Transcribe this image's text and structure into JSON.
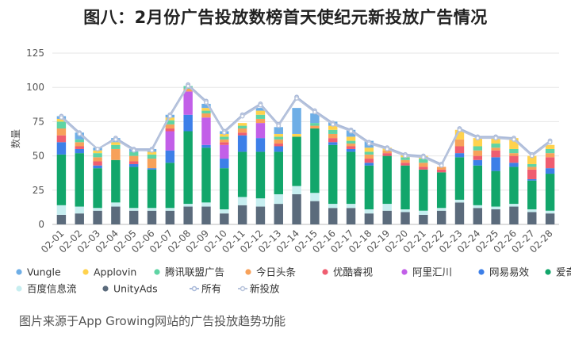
{
  "title": "图八：2月份广告投放数榜首天使纪元新投放广告情况",
  "caption": "图片来源于App Growing网站的广告投放趋势功能",
  "chart_data": {
    "type": "bar",
    "stacked": true,
    "categories": [
      "02-01",
      "02-02",
      "02-03",
      "02-04",
      "02-05",
      "02-06",
      "02-07",
      "02-08",
      "02-09",
      "02-10",
      "02-11",
      "02-12",
      "02-13",
      "02-14",
      "02-15",
      "02-16",
      "02-17",
      "02-18",
      "02-19",
      "02-20",
      "02-21",
      "02-22",
      "02-23",
      "02-24",
      "02-25",
      "02-26",
      "02-27",
      "02-28"
    ],
    "ylabel": "数量",
    "ylim": [
      0,
      125
    ],
    "yticks": [
      0,
      25,
      50,
      75,
      100,
      125
    ],
    "grid": true,
    "legend_position": "bottom",
    "series": [
      {
        "name": "UnityAds",
        "color": "#5b6b7c",
        "values": [
          7,
          8,
          10,
          13,
          10,
          10,
          10,
          13,
          13,
          8,
          14,
          13,
          15,
          22,
          17,
          12,
          12,
          8,
          10,
          9,
          7,
          10,
          16,
          12,
          11,
          13,
          9,
          8
        ]
      },
      {
        "name": "百度信息流",
        "color": "#c7eef0",
        "values": [
          7,
          5,
          2,
          3,
          2,
          2,
          2,
          2,
          3,
          3,
          6,
          6,
          7,
          6,
          6,
          3,
          3,
          3,
          5,
          2,
          3,
          2,
          2,
          2,
          2,
          2,
          2,
          2
        ]
      },
      {
        "name": "爱奇艺",
        "color": "#12a66b",
        "values": [
          37,
          39,
          29,
          31,
          30,
          28,
          33,
          53,
          40,
          30,
          33,
          34,
          31,
          36,
          47,
          43,
          38,
          32,
          35,
          32,
          30,
          26,
          31,
          29,
          26,
          27,
          21,
          27
        ]
      },
      {
        "name": "网易易效",
        "color": "#3d7fe8",
        "values": [
          9,
          3,
          2,
          0,
          2,
          1,
          9,
          12,
          2,
          7,
          12,
          10,
          4,
          0,
          0,
          2,
          2,
          2,
          0,
          0,
          0,
          0,
          3,
          4,
          10,
          3,
          1,
          4
        ]
      },
      {
        "name": "阿里汇川",
        "color": "#c25fe8",
        "values": [
          0,
          0,
          0,
          0,
          0,
          0,
          14,
          17,
          20,
          10,
          0,
          11,
          0,
          0,
          0,
          0,
          0,
          0,
          0,
          0,
          0,
          0,
          0,
          0,
          0,
          0,
          0,
          0
        ]
      },
      {
        "name": "优酷睿视",
        "color": "#ef5d70",
        "values": [
          5,
          2,
          3,
          0,
          2,
          0,
          2,
          0,
          0,
          2,
          2,
          0,
          2,
          0,
          0,
          3,
          2,
          3,
          2,
          2,
          2,
          2,
          5,
          3,
          5,
          5,
          7,
          8
        ]
      },
      {
        "name": "今日头条",
        "color": "#f7a15a",
        "values": [
          5,
          3,
          3,
          8,
          4,
          7,
          3,
          2,
          3,
          2,
          3,
          3,
          3,
          0,
          2,
          3,
          2,
          3,
          2,
          2,
          3,
          2,
          5,
          4,
          2,
          2,
          2,
          3
        ]
      },
      {
        "name": "腾讯联盟广告",
        "color": "#5fd4a4",
        "values": [
          5,
          2,
          3,
          3,
          3,
          3,
          3,
          2,
          2,
          2,
          2,
          3,
          2,
          0,
          2,
          3,
          2,
          2,
          0,
          2,
          3,
          0,
          0,
          3,
          3,
          3,
          2,
          3
        ]
      },
      {
        "name": "Applovin",
        "color": "#ffd24d",
        "values": [
          2,
          0,
          2,
          2,
          0,
          2,
          2,
          0,
          2,
          2,
          2,
          3,
          2,
          2,
          0,
          3,
          3,
          3,
          2,
          2,
          2,
          0,
          7,
          6,
          4,
          8,
          6,
          3
        ]
      },
      {
        "name": "Vungle",
        "color": "#6eaee6",
        "values": [
          2,
          5,
          2,
          3,
          2,
          2,
          2,
          0,
          3,
          2,
          0,
          2,
          5,
          19,
          7,
          3,
          5,
          5,
          0,
          0,
          0,
          0,
          0,
          0,
          0,
          0,
          0,
          0
        ]
      }
    ],
    "line_series": [
      {
        "name": "所有",
        "color": "#a9b9d9",
        "values": [
          79,
          67,
          55,
          63,
          55,
          55,
          80,
          102,
          90,
          68,
          80,
          88,
          73,
          93,
          83,
          74,
          69,
          60,
          56,
          51,
          50,
          44,
          70,
          64,
          64,
          63,
          51,
          61
        ]
      },
      {
        "name": "新投放",
        "color": "#b8c4dc",
        "values": [
          78,
          66,
          55,
          62,
          54,
          54,
          79,
          101,
          89,
          67,
          79,
          87,
          72,
          92,
          82,
          73,
          68,
          59,
          55,
          50,
          49,
          43,
          69,
          63,
          63,
          62,
          50,
          60
        ]
      }
    ],
    "legend_rows": [
      [
        "Vungle",
        "Applovin",
        "腾讯联盟广告",
        "今日头条",
        "优酷睿视",
        "阿里汇川",
        "网易易效",
        "爱奇艺"
      ],
      [
        "百度信息流",
        "UnityAds",
        "所有",
        "新投放"
      ]
    ]
  }
}
